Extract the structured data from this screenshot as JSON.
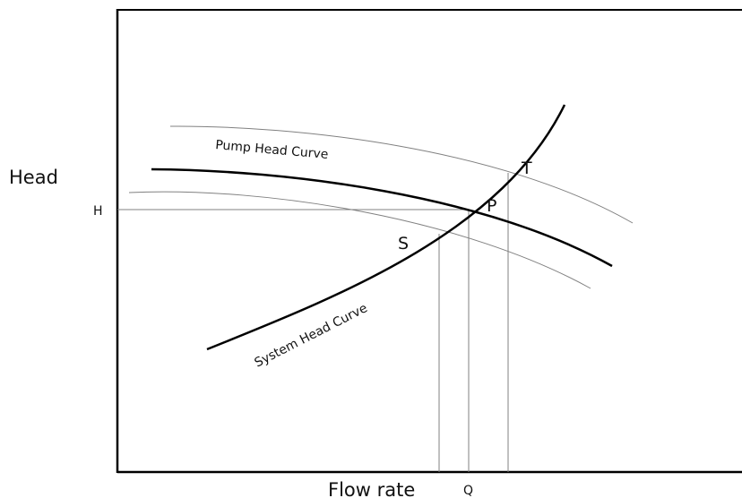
{
  "axes": {
    "y_label": "Head",
    "x_label": "Flow rate",
    "h_tick": "H",
    "q_tick": "Q"
  },
  "curves": {
    "pump": "Pump Head Curve",
    "system": "System Head Curve"
  },
  "points": {
    "p": "P",
    "s": "S",
    "t": "T"
  },
  "colors": {
    "line": "#000000",
    "thin": "#808080"
  }
}
